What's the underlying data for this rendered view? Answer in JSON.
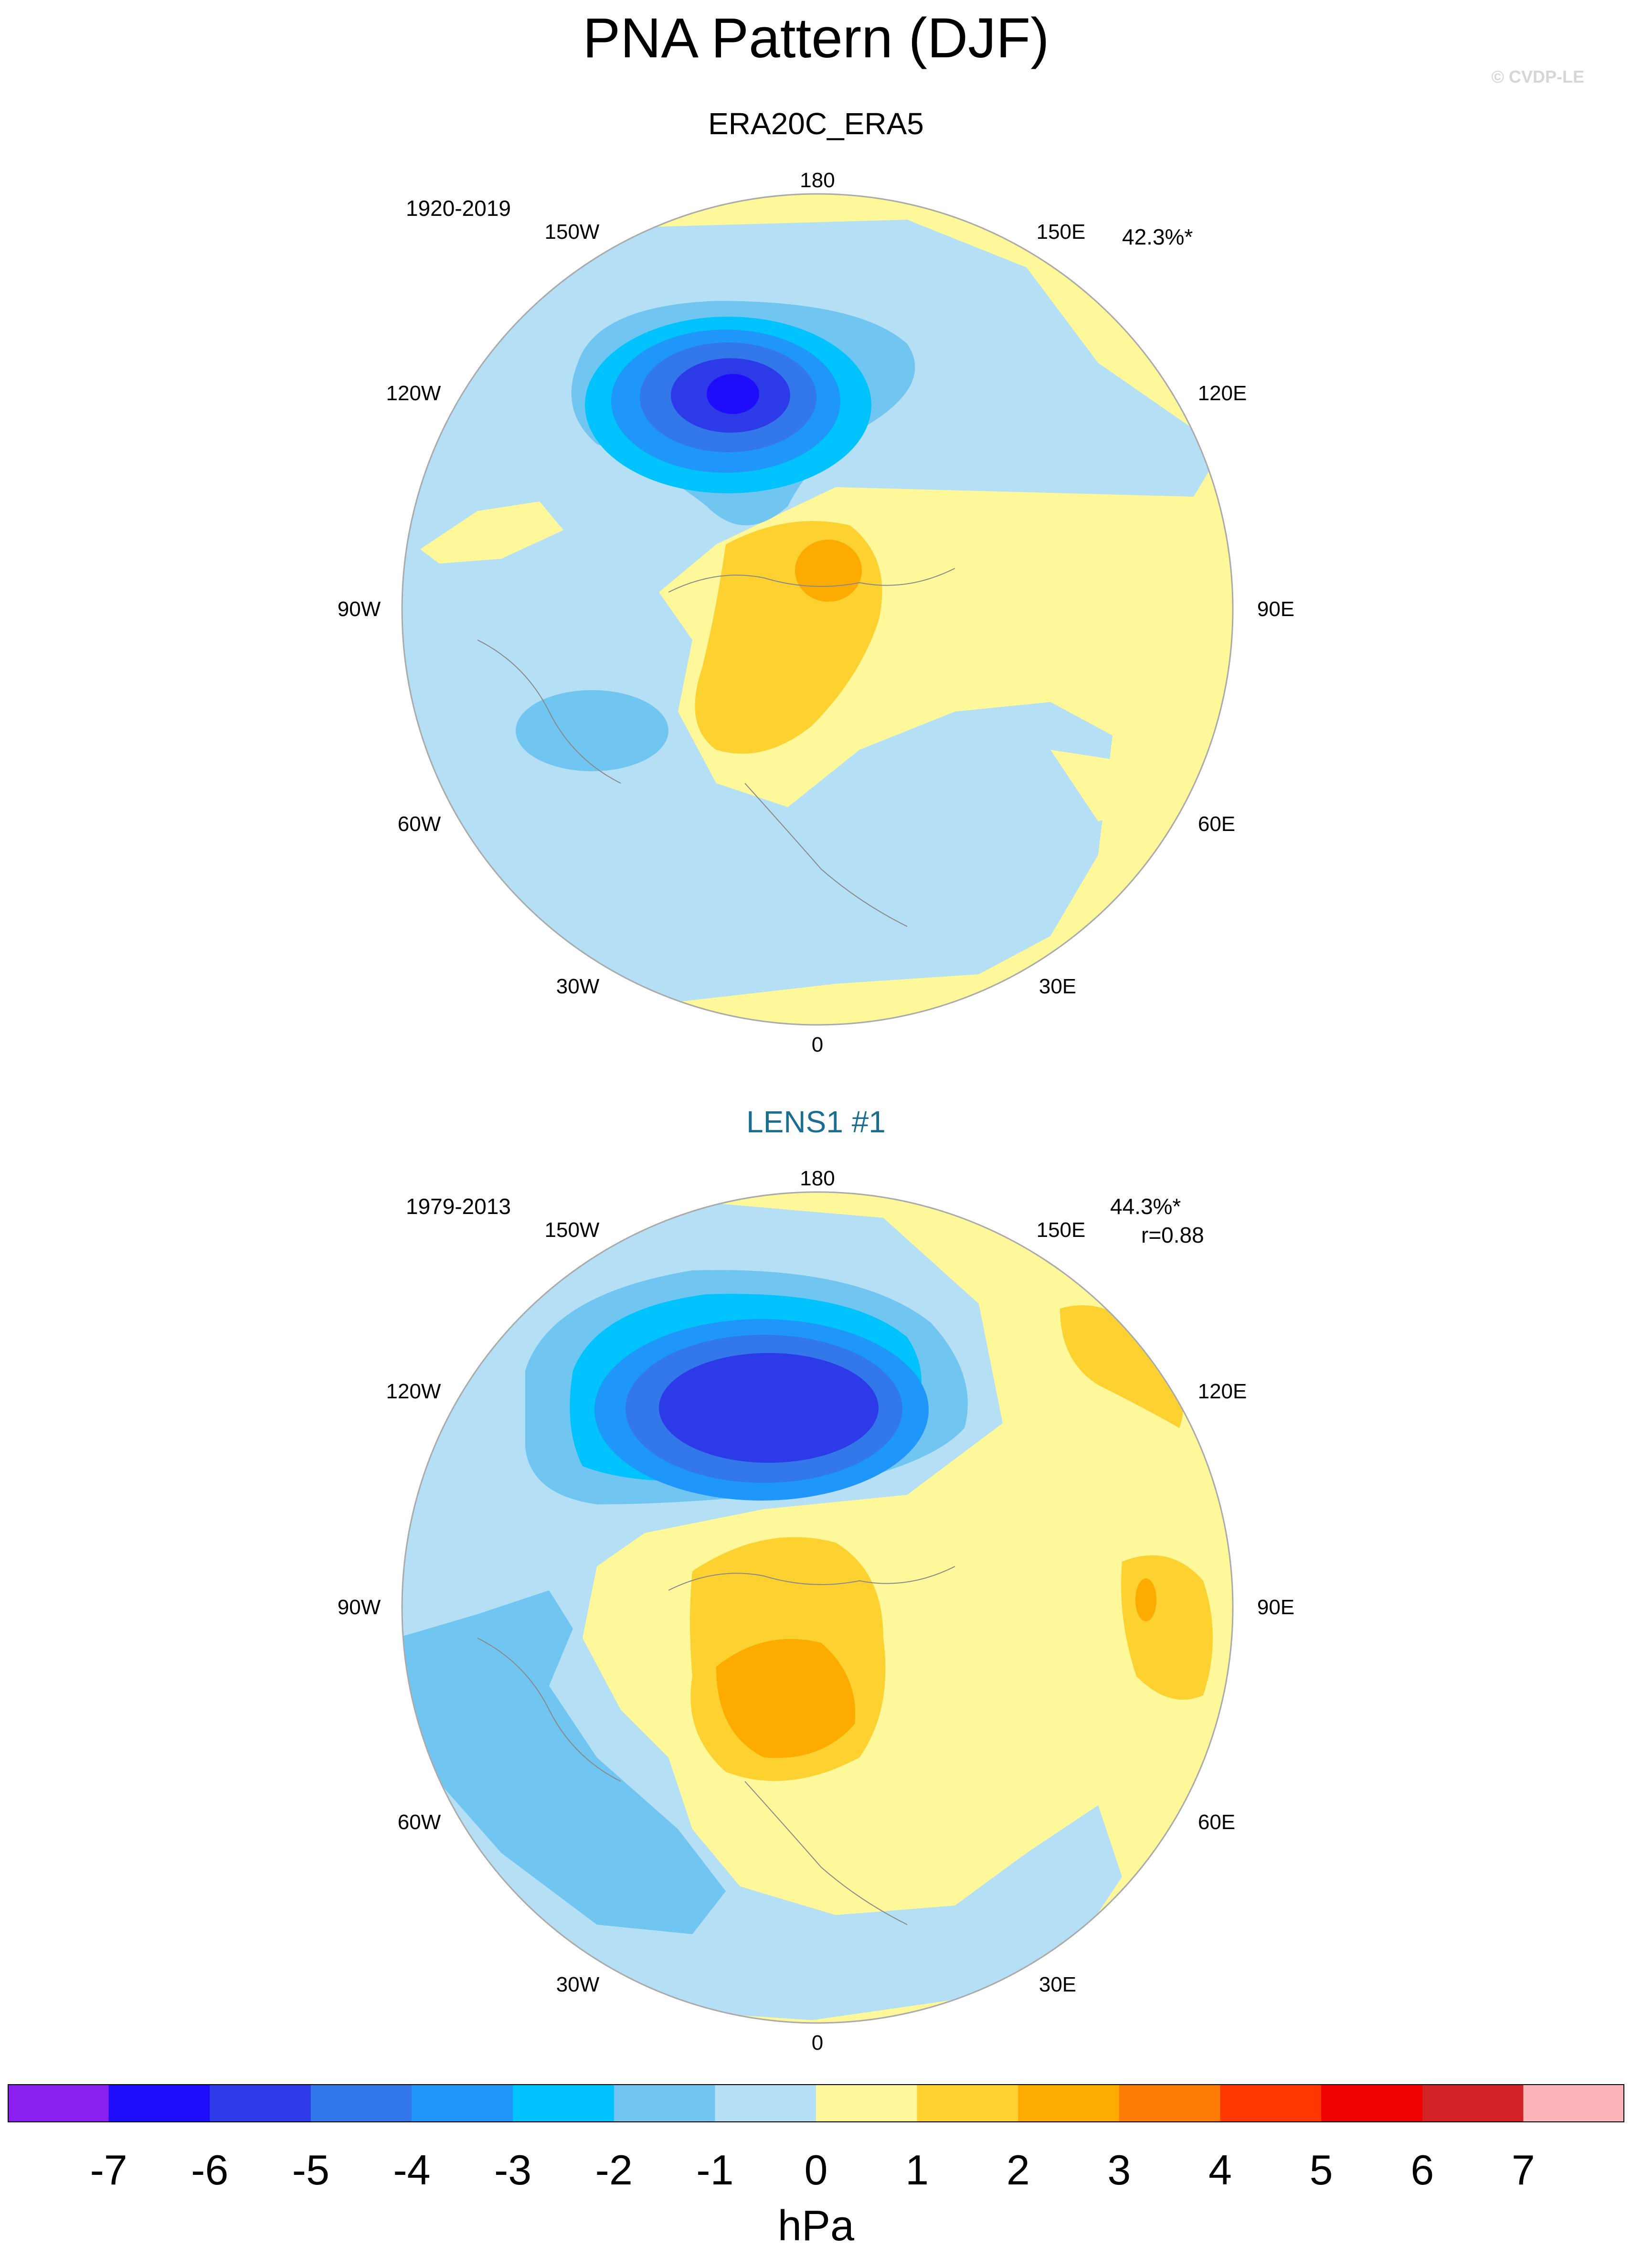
{
  "title": "PNA Pattern (DJF)",
  "copyright": "© CVDP-LE",
  "lon_labels": [
    "180",
    "150E",
    "120E",
    "90E",
    "60E",
    "30E",
    "0",
    "30W",
    "60W",
    "90W",
    "120W",
    "150W"
  ],
  "panels": [
    {
      "title": "ERA20C_ERA5",
      "years": "1920-2019",
      "variance": "42.3%*",
      "corr": ""
    },
    {
      "title": "LENS1 #1",
      "years": "1979-2013",
      "variance": "44.3%*",
      "corr": "r=0.88"
    }
  ],
  "colorbar": {
    "units": "hPa",
    "labels": [
      "-7",
      "-6",
      "-5",
      "-4",
      "-3",
      "-2",
      "-1",
      "0",
      "1",
      "2",
      "3",
      "4",
      "5",
      "6",
      "7"
    ],
    "colors": [
      "#8a1ff0",
      "#1e0dfb",
      "#2c3ae8",
      "#3278ea",
      "#1e96fa",
      "#00c3fd",
      "#70c6f1",
      "#b5dff4",
      "#fff89a",
      "#fdd12f",
      "#feab00",
      "#fd7c06",
      "#fc3700",
      "#ef0001",
      "#d12325",
      "#fdb5b9"
    ]
  }
}
